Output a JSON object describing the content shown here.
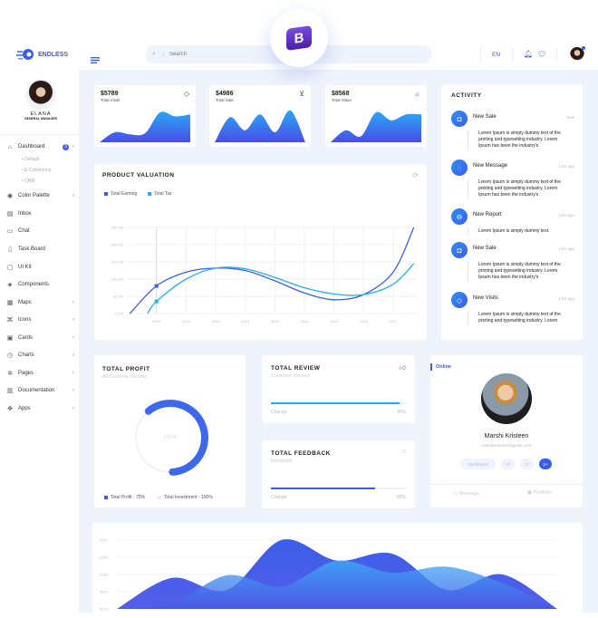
{
  "header": {
    "brand": "ENDLESS",
    "search_placeholder": "Search",
    "language": "EN",
    "badge_letter": "B",
    "icons": [
      "menu-icon",
      "search-icon",
      "bell-icon",
      "chat-icon"
    ]
  },
  "profile": {
    "name": "ELANA",
    "role": "GENERAL MANAGER"
  },
  "sidebar": {
    "items": [
      {
        "label": "Dashboard",
        "icon": "home-icon",
        "badge": "3",
        "chevron": true
      },
      {
        "label": "Color Palette",
        "icon": "palette-icon",
        "chevron": true
      },
      {
        "label": "Inbox",
        "icon": "inbox-icon",
        "chevron": false
      },
      {
        "label": "Chat",
        "icon": "chat-icon",
        "chevron": false
      },
      {
        "label": "Task Board",
        "icon": "file-icon",
        "chevron": false
      },
      {
        "label": "UI Kit",
        "icon": "tablet-icon",
        "chevron": false
      },
      {
        "label": "Components",
        "icon": "layers-icon",
        "chevron": false
      },
      {
        "label": "Maps",
        "icon": "map-icon",
        "chevron": true
      },
      {
        "label": "Icons",
        "icon": "command-icon",
        "chevron": true
      },
      {
        "label": "Cards",
        "icon": "cards-icon",
        "chevron": true
      },
      {
        "label": "Charts",
        "icon": "clock-icon",
        "chevron": true
      },
      {
        "label": "Pages",
        "icon": "settings-icon",
        "chevron": true
      },
      {
        "label": "Documentation",
        "icon": "book-icon",
        "chevron": true
      },
      {
        "label": "Apps",
        "icon": "grid-icon",
        "chevron": true
      }
    ],
    "sub_items": [
      "Default",
      "E-Commerce",
      "CRM"
    ]
  },
  "stats": [
    {
      "value": "$5789",
      "label": "Total Visits",
      "icon": "tag-icon",
      "sparkline": [
        0,
        10,
        8,
        9,
        30,
        26,
        28
      ]
    },
    {
      "value": "$4986",
      "label": "Total Sale",
      "icon": "cart-icon",
      "sparkline": [
        0,
        25,
        12,
        28,
        10,
        32,
        0
      ]
    },
    {
      "value": "$8568",
      "label": "Total Value",
      "icon": "sun-icon",
      "sparkline": [
        0,
        12,
        6,
        30,
        22,
        28,
        28
      ]
    }
  ],
  "valuation": {
    "title": "PRODUCT VALUATION",
    "icon": "refresh-icon"
  },
  "chart_data": [
    {
      "type": "line",
      "title": "PRODUCT VALUATION",
      "x_ticks": [
        "2009",
        "2010",
        "2011",
        "2012",
        "2013",
        "2014",
        "2015",
        "2016",
        "2017"
      ],
      "y_ticks": [
        "0 CR",
        "50 CR",
        "100 CR",
        "150 CR",
        "200 CR",
        "250 CR"
      ],
      "ylim": [
        0,
        250
      ],
      "xlim": [
        2008,
        2017.8
      ],
      "grid": true,
      "legend": "top-left",
      "series": [
        {
          "name": "Total Earning",
          "color": "#3b5ee8",
          "points": [
            [
              2008.1,
              0
            ],
            [
              2009,
              80
            ],
            [
              2010,
              120
            ],
            [
              2011,
              132
            ],
            [
              2012,
              125
            ],
            [
              2013,
              95
            ],
            [
              2014,
              60
            ],
            [
              2015,
              40
            ],
            [
              2016,
              55
            ],
            [
              2017,
              120
            ],
            [
              2017.7,
              250
            ]
          ]
        },
        {
          "name": "Total Tax",
          "color": "#1eb0f7",
          "points": [
            [
              2008.7,
              0
            ],
            [
              2009,
              35
            ],
            [
              2010,
              100
            ],
            [
              2011,
              132
            ],
            [
              2012,
              130
            ],
            [
              2013,
              105
            ],
            [
              2014,
              75
            ],
            [
              2015,
              57
            ],
            [
              2016,
              55
            ],
            [
              2017,
              85
            ],
            [
              2017.7,
              145
            ]
          ]
        }
      ]
    },
    {
      "type": "area",
      "y_ticks": [
        "2013",
        "2014",
        "2015",
        "2016",
        "2017"
      ],
      "ylim": [
        2013,
        2017.2
      ],
      "grid": true,
      "series": [
        {
          "color": "#3b5ee8",
          "values": [
            2013,
            2014.8,
            2014.1,
            2017,
            2015.8,
            2016.2,
            2014.1,
            2015.0,
            2013
          ]
        },
        {
          "color": "#3fb0f7",
          "values": [
            2013,
            2013.3,
            2014.95,
            2014.3,
            2015.8,
            2015.1,
            2015.45,
            2014.5,
            2013
          ]
        }
      ]
    }
  ],
  "profit": {
    "title": "TOTAL PROFIT",
    "subtitle": "All Custome Income",
    "center": "100%",
    "percent": 75,
    "legend": [
      "Total Profit - 75%",
      "Total Investment - 100%"
    ]
  },
  "review": {
    "title": "TOTAL REVIEW",
    "subtitle": "Customer Review",
    "change_label": "Change",
    "value": "90%",
    "percent": 95,
    "icon": "thumbs-up-icon",
    "color": "#1eb0f7"
  },
  "feedback": {
    "title": "TOTAL FEEDBACK",
    "subtitle": "Feedback",
    "change_label": "Change",
    "value": "85%",
    "percent": 77,
    "icon": "message-icon",
    "color": "#3b5ee8"
  },
  "user_card": {
    "status": "Online",
    "name": "Marshi Kristeen",
    "email": "marshikristeen@gmail.com",
    "tags": [
      "Dashboard",
      "UI",
      "XI",
      "2+"
    ],
    "actions": [
      "Message",
      "Portfolio"
    ]
  },
  "activity": {
    "title": "ACTIVITY",
    "items": [
      {
        "title": "New Sale",
        "time": "New",
        "text": "Lorem Ipsum is simply dummy text of the printing and typesetting industry. Lorem Ipsum has been the industry's",
        "icon": "bag-icon"
      },
      {
        "title": "New Message",
        "time": "14m ago",
        "text": "Lorem Ipsum is simply dummy text of the printing and typesetting industry. Lorem Ipsum has been the industry's",
        "icon": "message-icon"
      },
      {
        "title": "New Report",
        "time": "14m ago",
        "text": "Lorem Ipsum is simply dummy text.",
        "icon": "minus-circle-icon"
      },
      {
        "title": "New Sale",
        "time": "14m ago",
        "text": "Lorem Ipsum is simply dummy text of the printing and typesetting industry. Lorem Ipsum has been the industry's",
        "icon": "bag-icon"
      },
      {
        "title": "New Visits",
        "time": "14m ago",
        "text": "Lorem Ipsum is simply dummy text of the printing and typesetting industry. Lorem",
        "icon": "tag-icon"
      }
    ]
  }
}
